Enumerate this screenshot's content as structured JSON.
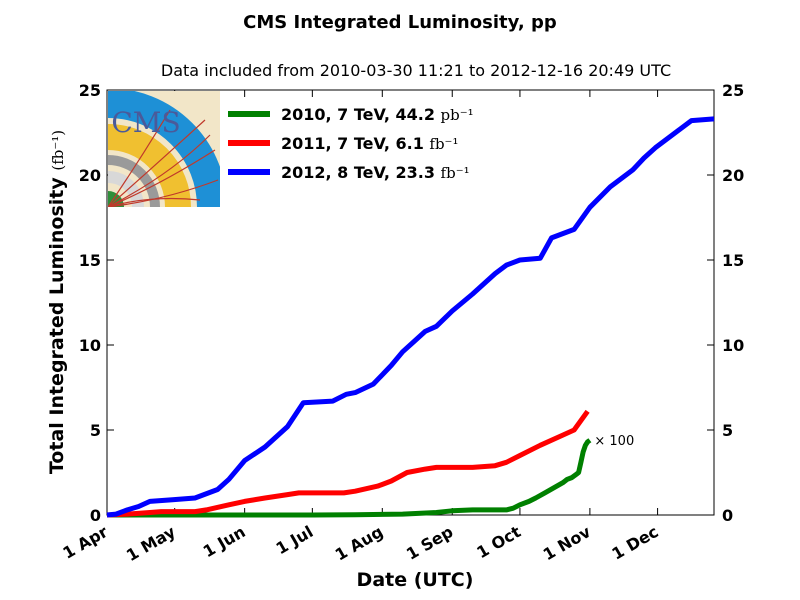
{
  "chart_data": {
    "type": "line",
    "title": "CMS Integrated Luminosity, pp",
    "subtitle": "Data included from 2010-03-30 11:21 to 2012-12-16 20:49 UTC",
    "xlabel": "Date (UTC)",
    "ylabel": "Total Integrated Luminosity",
    "ylabel_unit": "(fb⁻¹)",
    "ylim": [
      0,
      25
    ],
    "yticks": [
      0,
      5,
      10,
      15,
      20,
      25
    ],
    "xlim": [
      "04-01",
      "12-26"
    ],
    "xticks": [
      {
        "label": "1 Apr",
        "date": "04-01"
      },
      {
        "label": "1 May",
        "date": "05-01"
      },
      {
        "label": "1 Jun",
        "date": "06-01"
      },
      {
        "label": "1 Jul",
        "date": "07-01"
      },
      {
        "label": "1 Aug",
        "date": "08-01"
      },
      {
        "label": "1 Sep",
        "date": "09-01"
      },
      {
        "label": "1 Oct",
        "date": "10-01"
      },
      {
        "label": "1 Nov",
        "date": "11-01"
      },
      {
        "label": "1 Dec",
        "date": "12-01"
      }
    ],
    "legend_position": "top-left",
    "grid": false,
    "series": [
      {
        "name": "2010, 7 TeV, 44.2",
        "unit": "pb⁻¹",
        "color": "#008000",
        "points": [
          [
            "04-01",
            0
          ],
          [
            "05-01",
            0
          ],
          [
            "06-01",
            0
          ],
          [
            "07-01",
            0
          ],
          [
            "07-20",
            0.02
          ],
          [
            "08-10",
            0.05
          ],
          [
            "08-25",
            0.15
          ],
          [
            "09-01",
            0.25
          ],
          [
            "09-10",
            0.3
          ],
          [
            "09-25",
            0.3
          ],
          [
            "09-28",
            0.4
          ],
          [
            "10-01",
            0.6
          ],
          [
            "10-05",
            0.8
          ],
          [
            "10-08",
            1.0
          ],
          [
            "10-12",
            1.3
          ],
          [
            "10-16",
            1.6
          ],
          [
            "10-20",
            1.9
          ],
          [
            "10-22",
            2.1
          ],
          [
            "10-24",
            2.2
          ],
          [
            "10-26",
            2.4
          ],
          [
            "10-27",
            2.5
          ],
          [
            "10-28",
            3.1
          ],
          [
            "10-29",
            3.7
          ],
          [
            "10-30",
            4.1
          ],
          [
            "10-31",
            4.3
          ],
          [
            "11-01",
            4.4
          ]
        ]
      },
      {
        "name": "2011, 7 TeV, 6.1",
        "unit": "fb⁻¹",
        "color": "#ff0000",
        "points": [
          [
            "04-01",
            0
          ],
          [
            "04-10",
            0.05
          ],
          [
            "04-20",
            0.15
          ],
          [
            "04-25",
            0.2
          ],
          [
            "05-10",
            0.2
          ],
          [
            "05-15",
            0.3
          ],
          [
            "05-25",
            0.6
          ],
          [
            "06-01",
            0.8
          ],
          [
            "06-10",
            1.0
          ],
          [
            "06-20",
            1.2
          ],
          [
            "06-25",
            1.3
          ],
          [
            "07-15",
            1.3
          ],
          [
            "07-20",
            1.4
          ],
          [
            "07-30",
            1.7
          ],
          [
            "08-05",
            2.0
          ],
          [
            "08-12",
            2.5
          ],
          [
            "08-20",
            2.7
          ],
          [
            "08-25",
            2.8
          ],
          [
            "09-10",
            2.8
          ],
          [
            "09-20",
            2.9
          ],
          [
            "09-25",
            3.1
          ],
          [
            "10-01",
            3.5
          ],
          [
            "10-10",
            4.1
          ],
          [
            "10-20",
            4.7
          ],
          [
            "10-25",
            5.0
          ],
          [
            "10-31",
            6.1
          ]
        ]
      },
      {
        "name": "2012, 8 TeV, 23.3",
        "unit": "fb⁻¹",
        "color": "#0000ff",
        "points": [
          [
            "04-01",
            0
          ],
          [
            "04-05",
            0.05
          ],
          [
            "04-10",
            0.3
          ],
          [
            "04-15",
            0.5
          ],
          [
            "04-20",
            0.8
          ],
          [
            "04-30",
            0.9
          ],
          [
            "05-10",
            1.0
          ],
          [
            "05-20",
            1.5
          ],
          [
            "05-25",
            2.1
          ],
          [
            "06-01",
            3.2
          ],
          [
            "06-10",
            4.0
          ],
          [
            "06-20",
            5.2
          ],
          [
            "06-27",
            6.6
          ],
          [
            "07-10",
            6.7
          ],
          [
            "07-16",
            7.1
          ],
          [
            "07-20",
            7.2
          ],
          [
            "07-28",
            7.7
          ],
          [
            "08-05",
            8.8
          ],
          [
            "08-10",
            9.6
          ],
          [
            "08-15",
            10.2
          ],
          [
            "08-20",
            10.8
          ],
          [
            "08-25",
            11.1
          ],
          [
            "09-01",
            12.0
          ],
          [
            "09-10",
            13.0
          ],
          [
            "09-20",
            14.2
          ],
          [
            "09-25",
            14.7
          ],
          [
            "10-01",
            15.0
          ],
          [
            "10-10",
            15.1
          ],
          [
            "10-15",
            16.3
          ],
          [
            "10-25",
            16.8
          ],
          [
            "11-01",
            18.1
          ],
          [
            "11-10",
            19.3
          ],
          [
            "11-20",
            20.3
          ],
          [
            "11-25",
            21.0
          ],
          [
            "11-30",
            21.6
          ],
          [
            "12-05",
            22.1
          ],
          [
            "12-10",
            22.6
          ],
          [
            "12-16",
            23.2
          ],
          [
            "12-26",
            23.3
          ]
        ]
      }
    ],
    "annotations": [
      {
        "text": "× 100",
        "x": "11-03",
        "y": 4.4
      }
    ]
  },
  "logo": {
    "text": "CMS",
    "bg_color": "#f2e6c8",
    "blue": "#1e90d6",
    "gold": "#f0c030",
    "track_color": "#c0392b"
  }
}
